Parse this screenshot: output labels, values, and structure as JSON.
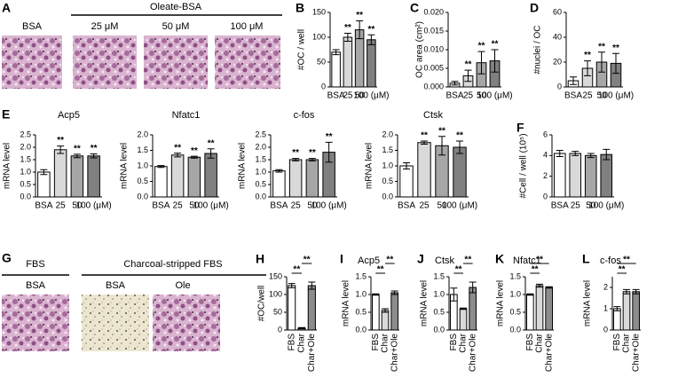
{
  "figure_a": {
    "panel": "A",
    "control": "BSA",
    "group": "Oleate-BSA",
    "group_labels": [
      "25 μM",
      "50 μM",
      "100 μM"
    ]
  },
  "figure_g": {
    "panel": "G",
    "control": "FBS",
    "group": "Charcoal-stripped FBS",
    "labels": [
      "BSA",
      "BSA",
      "Ole"
    ]
  },
  "chart_data": [
    {
      "type": "bar",
      "panel": "B",
      "ylabel": "#OC / well",
      "categories": [
        "BSA",
        "25",
        "50",
        "100 (μM)"
      ],
      "values": [
        70,
        100,
        115,
        95
      ],
      "errors": [
        5,
        8,
        18,
        10
      ],
      "colors": [
        "#ffffff",
        "#d9d9d9",
        "#a6a6a6",
        "#808080"
      ],
      "ylim": [
        0,
        150
      ],
      "yticks": [
        0,
        50,
        100,
        150
      ],
      "value_annotations": [
        null,
        "**",
        "**",
        "**"
      ]
    },
    {
      "type": "bar",
      "panel": "C",
      "ylabel": "OC area (cm²)",
      "categories": [
        "BSA",
        "25",
        "50",
        "100 (μM)"
      ],
      "values": [
        0.001,
        0.003,
        0.0065,
        0.007
      ],
      "errors": [
        0.0005,
        0.0015,
        0.003,
        0.003
      ],
      "colors": [
        "#ffffff",
        "#d9d9d9",
        "#a6a6a6",
        "#808080"
      ],
      "ylim": [
        0,
        0.02
      ],
      "yticks": [
        {
          "value": 0,
          "label": "0.000"
        },
        {
          "value": 0.005,
          "label": "0.005"
        },
        {
          "value": 0.01,
          "label": "0.010"
        },
        {
          "value": 0.015,
          "label": "0.015"
        },
        {
          "value": 0.02,
          "label": "0.020"
        }
      ],
      "value_annotations": [
        null,
        "**",
        "**",
        "**"
      ]
    },
    {
      "type": "bar",
      "panel": "D",
      "ylabel": "#nuclei / OC",
      "categories": [
        "BSA",
        "25",
        "50",
        "100 (μM)"
      ],
      "values": [
        5,
        15,
        20,
        19
      ],
      "errors": [
        3,
        6,
        8,
        8
      ],
      "colors": [
        "#ffffff",
        "#d9d9d9",
        "#a6a6a6",
        "#808080"
      ],
      "ylim": [
        0,
        60
      ],
      "yticks": [
        0,
        20,
        40,
        60
      ],
      "value_annotations": [
        null,
        "**",
        "**",
        "**"
      ]
    },
    {
      "type": "bar",
      "panel": "E",
      "title": "Acp5",
      "ylabel": "mRNA level",
      "categories": [
        "BSA",
        "25",
        "50",
        "100 (μM)"
      ],
      "values": [
        1.0,
        1.9,
        1.65,
        1.65
      ],
      "errors": [
        0.1,
        0.15,
        0.07,
        0.08
      ],
      "colors": [
        "#ffffff",
        "#d9d9d9",
        "#a6a6a6",
        "#808080"
      ],
      "ylim": [
        0,
        2.5
      ],
      "yticks": [
        {
          "value": 0,
          "label": "0.0"
        },
        0.5,
        {
          "value": 1,
          "label": "1.0"
        },
        1.5,
        {
          "value": 2,
          "label": "2.0"
        },
        2.5
      ],
      "value_annotations": [
        null,
        "**",
        "**",
        "**"
      ]
    },
    {
      "type": "bar",
      "title": "Nfatc1",
      "ylabel": "mRNA level",
      "categories": [
        "BSA",
        "25",
        "50",
        "100 (μM)"
      ],
      "values": [
        0.98,
        1.35,
        1.28,
        1.4
      ],
      "errors": [
        0.03,
        0.06,
        0.03,
        0.15
      ],
      "colors": [
        "#ffffff",
        "#d9d9d9",
        "#a6a6a6",
        "#808080"
      ],
      "ylim": [
        0,
        2
      ],
      "yticks": [
        {
          "value": 0,
          "label": "0.0"
        },
        0.5,
        {
          "value": 1,
          "label": "1.0"
        },
        1.5,
        {
          "value": 2,
          "label": "2.0"
        }
      ],
      "value_annotations": [
        null,
        "**",
        "**",
        "**"
      ]
    },
    {
      "type": "bar",
      "title": "c-fos",
      "ylabel": "mRNA level",
      "categories": [
        "BSA",
        "25",
        "50",
        "100 (μM)"
      ],
      "values": [
        1.05,
        1.5,
        1.5,
        1.8
      ],
      "errors": [
        0.05,
        0.05,
        0.05,
        0.4
      ],
      "colors": [
        "#ffffff",
        "#d9d9d9",
        "#a6a6a6",
        "#808080"
      ],
      "ylim": [
        0,
        2.5
      ],
      "yticks": [
        {
          "value": 0,
          "label": "0.0"
        },
        0.5,
        {
          "value": 1,
          "label": "1.0"
        },
        1.5,
        {
          "value": 2,
          "label": "2.0"
        },
        2.5
      ],
      "value_annotations": [
        null,
        "**",
        "**",
        "**"
      ]
    },
    {
      "type": "bar",
      "title": "Ctsk",
      "ylabel": "mRNA level",
      "categories": [
        "BSA",
        "25",
        "50",
        "100 (μM)"
      ],
      "values": [
        1.0,
        1.75,
        1.65,
        1.6
      ],
      "errors": [
        0.1,
        0.05,
        0.3,
        0.2
      ],
      "colors": [
        "#ffffff",
        "#d9d9d9",
        "#a6a6a6",
        "#808080"
      ],
      "ylim": [
        0,
        2
      ],
      "yticks": [
        {
          "value": 0,
          "label": "0.0"
        },
        0.5,
        {
          "value": 1,
          "label": "1.0"
        },
        1.5,
        {
          "value": 2,
          "label": "2.0"
        }
      ],
      "value_annotations": [
        null,
        "**",
        "**",
        "**"
      ]
    },
    {
      "type": "bar",
      "panel": "F",
      "ylabel": "#Cell / well (10⁵)",
      "categories": [
        "BSA",
        "25",
        "50",
        "100 (μM)"
      ],
      "values": [
        4.2,
        4.2,
        4.0,
        4.1
      ],
      "errors": [
        0.3,
        0.2,
        0.2,
        0.5
      ],
      "colors": [
        "#ffffff",
        "#d9d9d9",
        "#a6a6a6",
        "#808080"
      ],
      "ylim": [
        0,
        6
      ],
      "yticks": [
        0,
        2,
        4,
        6
      ]
    },
    {
      "type": "bar",
      "panel": "H",
      "ylabel": "#OC/well",
      "categories": [
        "FBS",
        "Char",
        "Char+Ole"
      ],
      "values": [
        125,
        5,
        125
      ],
      "errors": [
        6,
        2,
        10
      ],
      "colors": [
        "#ffffff",
        "#d9d9d9",
        "#8c8c8c"
      ],
      "ylim": [
        0,
        150
      ],
      "yticks": [
        0,
        50,
        100,
        150
      ],
      "comparisons": [
        {
          "from": "FBS",
          "to": "Char",
          "label": "**"
        },
        {
          "from": "Char",
          "to": "Char+Ole",
          "label": "**"
        }
      ]
    },
    {
      "type": "bar",
      "panel": "I",
      "title": "Acp5",
      "ylabel": "mRNA level",
      "categories": [
        "FBS",
        "Char",
        "Char+Ole"
      ],
      "values": [
        1.0,
        0.55,
        1.05
      ],
      "errors": [
        0.02,
        0.05,
        0.05
      ],
      "colors": [
        "#ffffff",
        "#d9d9d9",
        "#8c8c8c"
      ],
      "ylim": [
        0,
        1.5
      ],
      "yticks": [
        {
          "value": 0,
          "label": "0.0"
        },
        0.5,
        {
          "value": 1,
          "label": "1.0"
        },
        1.5
      ],
      "comparisons": [
        {
          "from": "FBS",
          "to": "Char",
          "label": "**"
        },
        {
          "from": "Char",
          "to": "Char+Ole",
          "label": "**"
        }
      ]
    },
    {
      "type": "bar",
      "panel": "J",
      "title": "Ctsk",
      "ylabel": "mRNA level",
      "categories": [
        "FBS",
        "Char",
        "Char+Ole"
      ],
      "values": [
        1.0,
        0.6,
        1.2
      ],
      "errors": [
        0.18,
        0.02,
        0.15
      ],
      "colors": [
        "#ffffff",
        "#d9d9d9",
        "#8c8c8c"
      ],
      "ylim": [
        0,
        1.5
      ],
      "yticks": [
        {
          "value": 0,
          "label": "0.0"
        },
        0.5,
        {
          "value": 1,
          "label": "1.0"
        },
        1.5
      ],
      "comparisons": [
        {
          "from": "FBS",
          "to": "Char",
          "label": "**"
        },
        {
          "from": "Char",
          "to": "Char+Ole",
          "label": "**"
        }
      ]
    },
    {
      "type": "bar",
      "panel": "K",
      "title": "Nfatc1",
      "ylabel": "mRNA level",
      "categories": [
        "FBS",
        "Char",
        "Char+Ole"
      ],
      "values": [
        1.0,
        1.25,
        1.2
      ],
      "errors": [
        0.02,
        0.04,
        0.02
      ],
      "colors": [
        "#ffffff",
        "#d9d9d9",
        "#8c8c8c"
      ],
      "ylim": [
        0,
        1.5
      ],
      "yticks": [
        {
          "value": 0,
          "label": "0.0"
        },
        0.5,
        {
          "value": 1,
          "label": "1.0"
        },
        1.5
      ],
      "comparisons": [
        {
          "from": "FBS",
          "to": "Char",
          "label": "**"
        },
        {
          "from": "FBS",
          "to": "Char+Ole",
          "label": "**"
        }
      ]
    },
    {
      "type": "bar",
      "panel": "L",
      "title": "c-fos",
      "ylabel": "mRNA level",
      "categories": [
        "FBS",
        "Char",
        "Char+Ole"
      ],
      "values": [
        1.0,
        1.8,
        1.8
      ],
      "errors": [
        0.1,
        0.1,
        0.1
      ],
      "colors": [
        "#ffffff",
        "#d9d9d9",
        "#8c8c8c"
      ],
      "ylim": [
        0,
        2.5
      ],
      "yticks": [
        0,
        1,
        2
      ],
      "comparisons": [
        {
          "from": "FBS",
          "to": "Char",
          "label": "**"
        },
        {
          "from": "FBS",
          "to": "Char+Ole",
          "label": "**"
        }
      ]
    }
  ]
}
